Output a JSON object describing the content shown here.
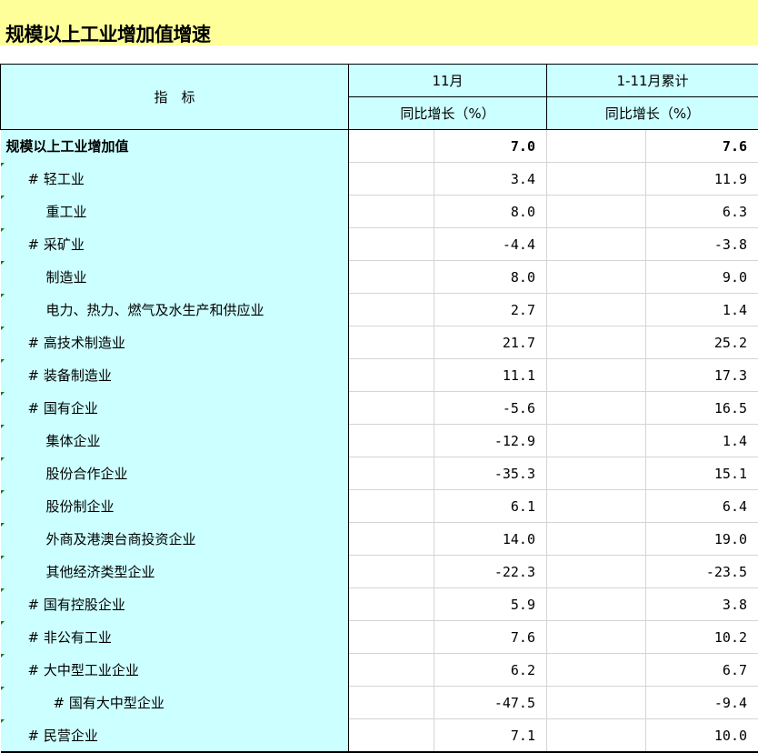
{
  "title": "规模以上工业增加值增速",
  "header": {
    "indicator": "指　标",
    "col1": "11月",
    "col2": "1-11月累计",
    "sub1": "同比增长（%）",
    "sub2": "同比增长（%）"
  },
  "rows": [
    {
      "label": "规模以上工业增加值",
      "m": "7.0",
      "c": "7.6",
      "level": 0
    },
    {
      "label": "# 轻工业",
      "m": "3.4",
      "c": "11.9",
      "level": 1
    },
    {
      "label": "重工业",
      "m": "8.0",
      "c": "6.3",
      "level": 1
    },
    {
      "label": "# 采矿业",
      "m": "-4.4",
      "c": "-3.8",
      "level": 1
    },
    {
      "label": "制造业",
      "m": "8.0",
      "c": "9.0",
      "level": 1
    },
    {
      "label": "电力、热力、燃气及水生产和供应业",
      "m": "2.7",
      "c": "1.4",
      "level": 1
    },
    {
      "label": "# 高技术制造业",
      "m": "21.7",
      "c": "25.2",
      "level": 1
    },
    {
      "label": "# 装备制造业",
      "m": "11.1",
      "c": "17.3",
      "level": 1
    },
    {
      "label": "# 国有企业",
      "m": "-5.6",
      "c": "16.5",
      "level": 1
    },
    {
      "label": "集体企业",
      "m": "-12.9",
      "c": "1.4",
      "level": 1
    },
    {
      "label": "股份合作企业",
      "m": "-35.3",
      "c": "15.1",
      "level": 1
    },
    {
      "label": "股份制企业",
      "m": "6.1",
      "c": "6.4",
      "level": 1
    },
    {
      "label": "外商及港澳台商投资企业",
      "m": "14.0",
      "c": "19.0",
      "level": 1
    },
    {
      "label": "其他经济类型企业",
      "m": "-22.3",
      "c": "-23.5",
      "level": 1
    },
    {
      "label": "# 国有控股企业",
      "m": "5.9",
      "c": "3.8",
      "level": 1
    },
    {
      "label": "# 非公有工业",
      "m": "7.6",
      "c": "10.2",
      "level": 1
    },
    {
      "label": "# 大中型工业企业",
      "m": "6.2",
      "c": "6.7",
      "level": 1
    },
    {
      "label": "# 国有大中型企业",
      "m": "-47.5",
      "c": "-9.4",
      "level": 2
    },
    {
      "label": "# 民营企业",
      "m": "7.1",
      "c": "10.0",
      "level": 1
    }
  ]
}
